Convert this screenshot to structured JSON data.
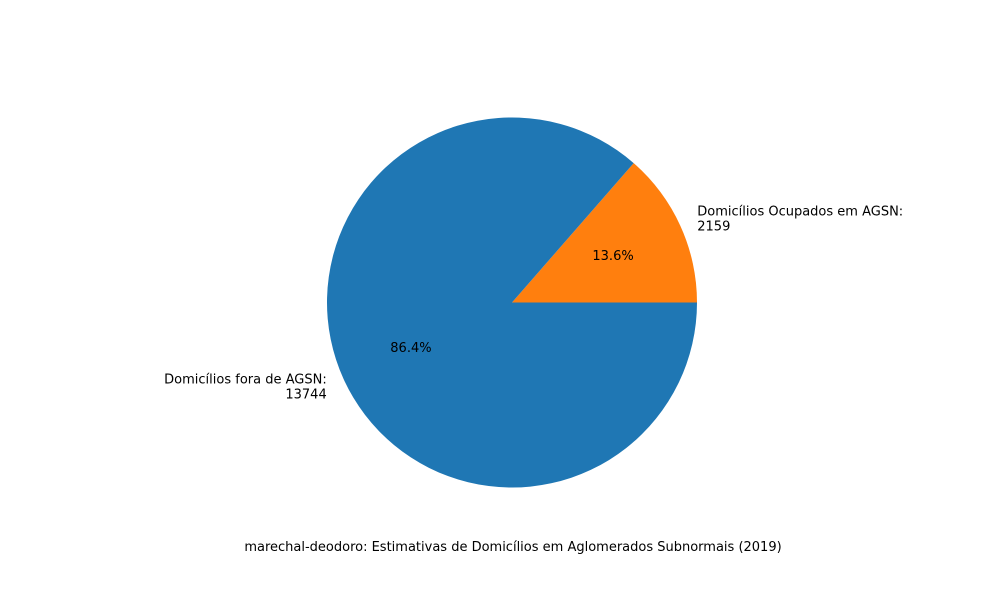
{
  "chart_data": {
    "type": "pie",
    "categories": [
      "Domicílios Ocupados em AGSN",
      "Domicílios fora de AGSN"
    ],
    "values": [
      2159,
      13744
    ],
    "value_labels": [
      "2159",
      "13744"
    ],
    "percent_labels": [
      "13.6%",
      "86.4%"
    ],
    "colors": [
      "#ff7f0e",
      "#1f77b4"
    ],
    "xlabel": "marechal-deodoro: Estimativas de Domicílios em Aglomerados Subnormais (2019)",
    "start_angle": 0,
    "direction": "counterclockwise"
  }
}
